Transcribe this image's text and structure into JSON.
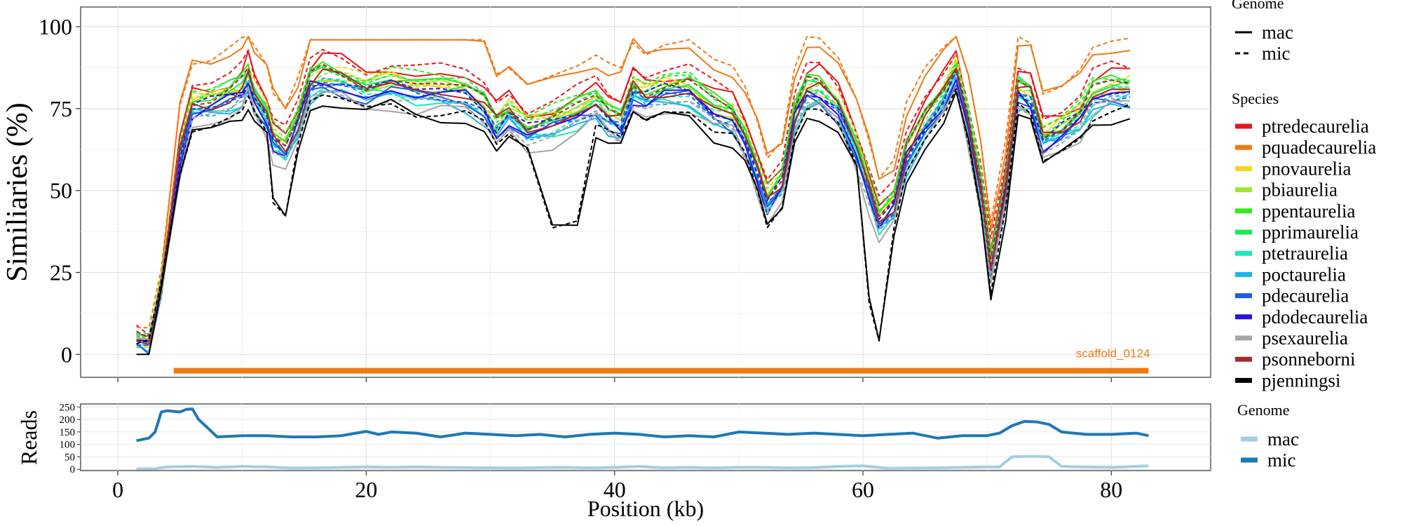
{
  "chart_data": [
    {
      "type": "line",
      "ylabel": "Similiaries (%)",
      "xlim": [
        -3,
        88
      ],
      "ylim": [
        -7,
        106
      ],
      "x_ticks": [
        0,
        20,
        40,
        60,
        80
      ],
      "y_ticks": [
        0,
        25,
        50,
        75,
        100
      ],
      "x_tick_labels": [
        "0",
        "20",
        "40",
        "60",
        "80"
      ],
      "y_tick_labels": [
        "0",
        "25",
        "50",
        "75",
        "100"
      ],
      "grid": true,
      "legend_position": "right",
      "legend_genome": {
        "title": "Genome",
        "items": [
          {
            "label": "mac",
            "linetype": "solid"
          },
          {
            "label": "mic",
            "linetype": "dashed"
          }
        ]
      },
      "legend_species": {
        "title": "Species",
        "items": [
          {
            "label": "ptredecaurelia",
            "color": "#E8141C"
          },
          {
            "label": "pquadecaurelia",
            "color": "#EE7A14"
          },
          {
            "label": "pnovaurelia",
            "color": "#F5D51E"
          },
          {
            "label": "pbiaurelia",
            "color": "#9EE829"
          },
          {
            "label": "ppentaurelia",
            "color": "#36E81E"
          },
          {
            "label": "pprimaurelia",
            "color": "#1EE858"
          },
          {
            "label": "ptetraurelia",
            "color": "#1EE8BE"
          },
          {
            "label": "poctaurelia",
            "color": "#1EB4E8"
          },
          {
            "label": "pdecaurelia",
            "color": "#1E5AE8"
          },
          {
            "label": "pdodecaurelia",
            "color": "#2A10DC"
          },
          {
            "label": "psexaurelia",
            "color": "#A6A6A6"
          },
          {
            "label": "psonneborni",
            "color": "#A52A2A"
          },
          {
            "label": "pjenningsi",
            "color": "#000000"
          }
        ]
      },
      "annotation": {
        "text": "scaffold_0124",
        "color": "#EE7A14",
        "x": 83,
        "y": 0
      },
      "scaffold_segment": {
        "x_start": 4.5,
        "x_end": 83,
        "y": -5,
        "color": "#EE7A14"
      },
      "base_profile": {
        "x": [
          1.5,
          2.5,
          3.5,
          5,
          6,
          7.5,
          9,
          10,
          10.5,
          11,
          12,
          12.5,
          13.5,
          14.5,
          15.5,
          16.5,
          18,
          20,
          22,
          24,
          26,
          28,
          29.5,
          30.5,
          31.5,
          33,
          35,
          37,
          38.5,
          39.5,
          40.5,
          41.5,
          42.5,
          44,
          46,
          48,
          49.5,
          50.5,
          51.5,
          52.3,
          53.5,
          54.5,
          55.5,
          56.5,
          58,
          59.5,
          60.5,
          61.3,
          62.5,
          63.5,
          65,
          66.5,
          67.5,
          68.5,
          69.5,
          70.3,
          71.5,
          72.5,
          73.5,
          74.5,
          76,
          77.5,
          78.5,
          80,
          81.5
        ],
        "y": [
          4,
          3,
          20,
          60,
          75,
          76,
          78,
          80,
          84,
          78,
          72,
          65,
          62,
          70,
          82,
          84,
          83,
          80,
          82,
          80,
          80,
          79,
          75,
          69,
          73,
          68,
          70,
          73,
          76,
          72,
          70,
          80,
          78,
          80,
          80,
          74,
          72,
          65,
          55,
          46,
          52,
          72,
          80,
          80,
          75,
          62,
          50,
          40,
          45,
          60,
          70,
          78,
          86,
          70,
          50,
          26,
          50,
          80,
          78,
          65,
          68,
          72,
          78,
          80,
          80
        ]
      },
      "species_offsets": [
        6,
        14,
        2,
        1,
        3,
        2,
        -2,
        -3,
        -2,
        -1,
        -5,
        1,
        -7
      ],
      "reads_panel": {
        "ylabel": "Reads",
        "ylim": [
          -5,
          262
        ],
        "y_ticks": [
          0,
          50,
          100,
          150,
          200,
          250
        ],
        "y_tick_labels": [
          "0",
          "50",
          "100",
          "150",
          "200",
          "250"
        ],
        "xlabel": "Position (kb)",
        "legend": {
          "title": "Genome",
          "items": [
            {
              "label": "mac",
              "color": "#A6CEE3"
            },
            {
              "label": "mic",
              "color": "#1F78B4"
            }
          ]
        },
        "series": [
          {
            "name": "mic",
            "color": "#1F78B4",
            "x": [
              1.5,
              2.5,
              3,
              3.5,
              4,
              5,
              5.5,
              6,
              6.5,
              8,
              10,
              12,
              14,
              16,
              18,
              20,
              21,
              22,
              24,
              26,
              28,
              30,
              32,
              34,
              36,
              38,
              40,
              42,
              44,
              46,
              48,
              50,
              52,
              54,
              56,
              58,
              60,
              62,
              64,
              66,
              68,
              70,
              71,
              72,
              73,
              74,
              75,
              76,
              78,
              80,
              82,
              83
            ],
            "y": [
              115,
              125,
              150,
              230,
              235,
              230,
              240,
              242,
              200,
              130,
              135,
              135,
              130,
              130,
              135,
              152,
              140,
              150,
              145,
              130,
              145,
              140,
              135,
              140,
              130,
              140,
              145,
              140,
              130,
              135,
              130,
              150,
              145,
              140,
              145,
              140,
              135,
              140,
              145,
              125,
              135,
              135,
              145,
              175,
              192,
              190,
              180,
              150,
              140,
              140,
              145,
              135
            ]
          },
          {
            "name": "mac",
            "color": "#A6CEE3",
            "x": [
              1.5,
              3,
              4,
              6,
              8,
              10,
              12,
              14,
              16,
              18,
              20,
              22,
              24,
              26,
              28,
              30,
              32,
              34,
              36,
              38,
              40,
              42,
              44,
              46,
              48,
              50,
              52,
              54,
              56,
              58,
              60,
              62,
              64,
              66,
              68,
              70,
              71,
              72,
              73,
              74,
              75,
              76,
              78,
              80,
              82,
              83
            ],
            "y": [
              2,
              3,
              10,
              12,
              8,
              12,
              10,
              5,
              6,
              8,
              10,
              8,
              10,
              8,
              7,
              6,
              5,
              7,
              8,
              6,
              8,
              12,
              6,
              8,
              6,
              8,
              8,
              6,
              7,
              12,
              14,
              4,
              5,
              6,
              8,
              10,
              10,
              50,
              52,
              52,
              50,
              12,
              10,
              8,
              12,
              14
            ]
          }
        ]
      }
    }
  ]
}
